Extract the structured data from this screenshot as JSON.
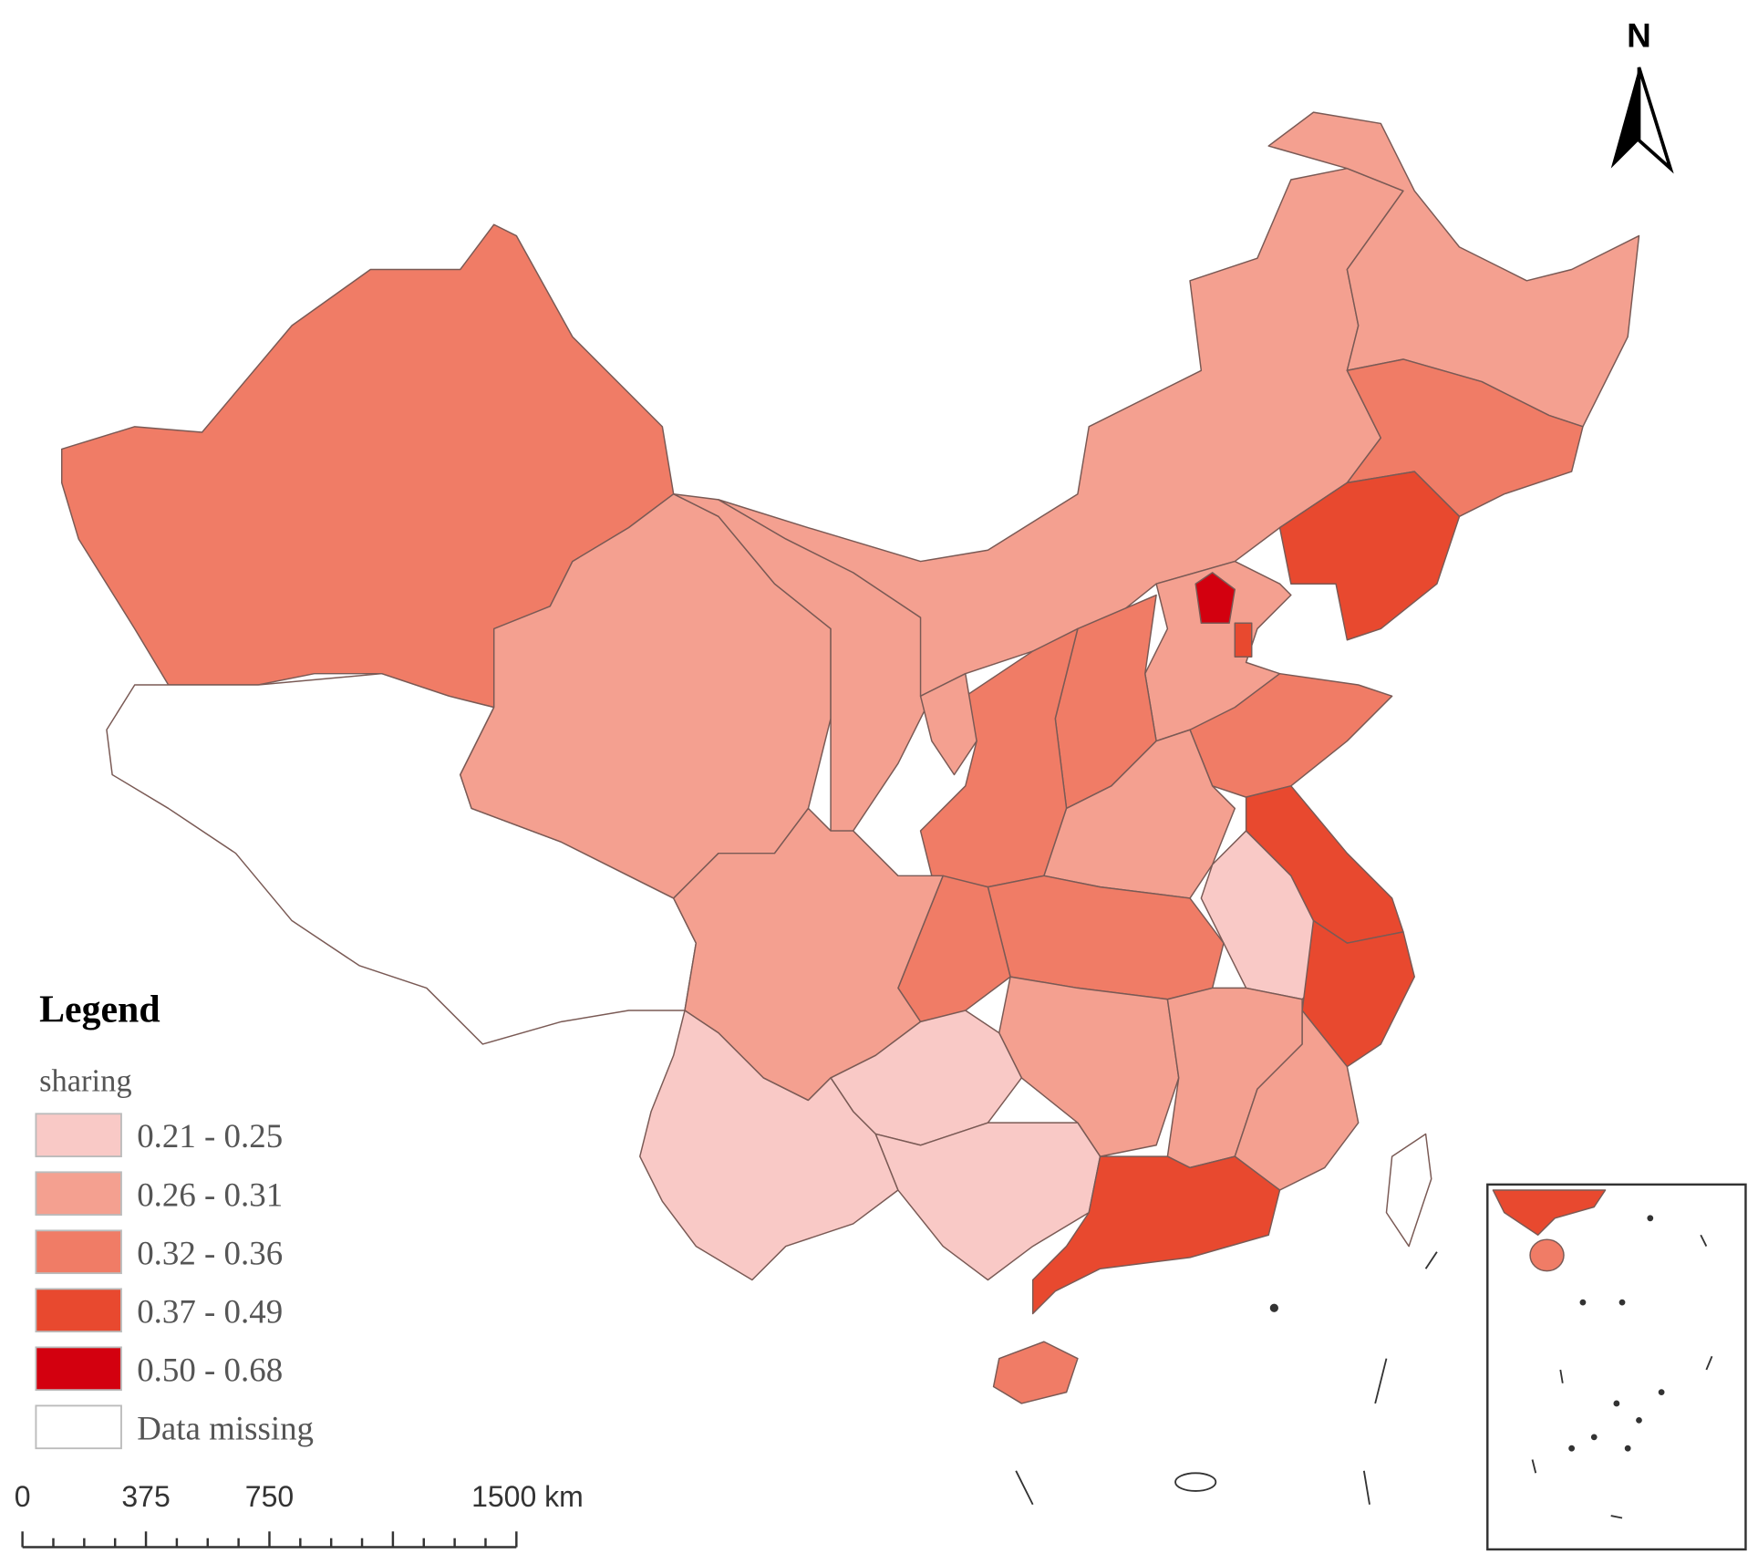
{
  "north": "N",
  "legend": {
    "title": "Legend",
    "field": "sharing",
    "classes": [
      {
        "label": "0.21 - 0.25",
        "color": "#f9c9c6"
      },
      {
        "label": "0.26 - 0.31",
        "color": "#f4a090"
      },
      {
        "label": "0.32 - 0.36",
        "color": "#f07c66"
      },
      {
        "label": "0.37 - 0.49",
        "color": "#e8492f"
      },
      {
        "label": "0.50 - 0.68",
        "color": "#d3000f"
      }
    ],
    "missing": "Data missing"
  },
  "scale_bar": {
    "labels": [
      "0",
      "375",
      "750",
      "1500 km"
    ]
  }
}
